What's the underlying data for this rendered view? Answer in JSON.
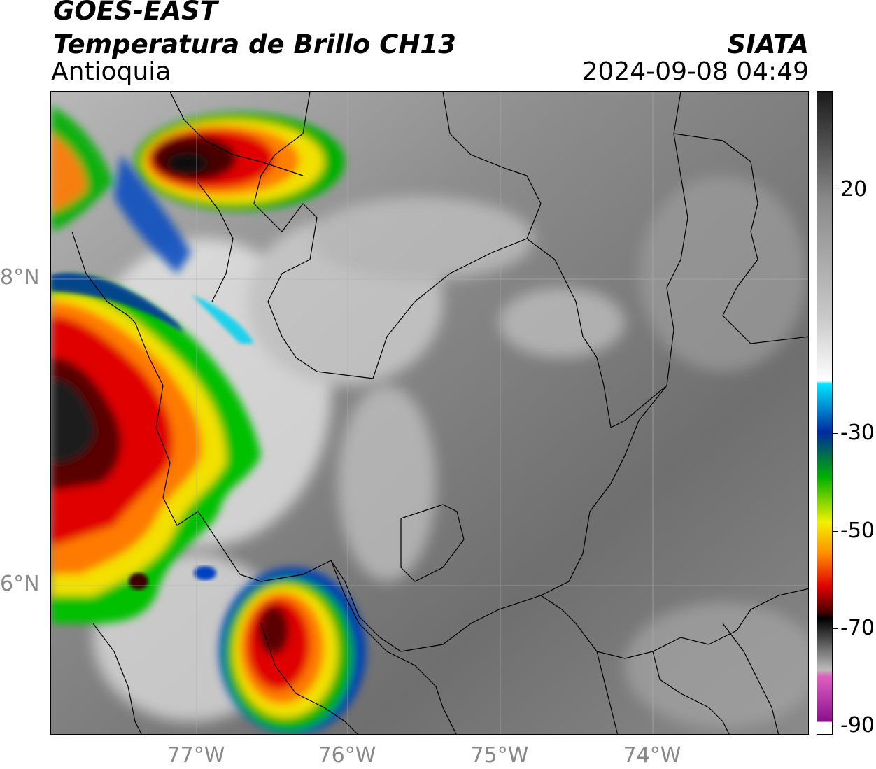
{
  "header": {
    "satellite": "GOES-EAST",
    "product": "Temperatura de Brillo CH13",
    "region": "Antioquia",
    "organization": "SIATA",
    "datetime": "2024-09-08 04:49"
  },
  "map": {
    "lat_labels": [
      "8°N",
      "6°N"
    ],
    "lon_labels": [
      "77°W",
      "76°W",
      "75°W",
      "74°W"
    ]
  },
  "colorbar": {
    "tick_labels": [
      "20",
      "-30",
      "-50",
      "-70",
      "-90"
    ],
    "colors": {
      "gray_warm": "#1a1a1a",
      "white": "#ffffff",
      "cyan": "#00e5ff",
      "blue": "#002a9e",
      "green": "#00b000",
      "yellow": "#f2f200",
      "orange": "#ff8c00",
      "red": "#e00000",
      "dark_red": "#4a0000",
      "black": "#000000",
      "pink": "#e060c0",
      "purple": "#8a1090"
    }
  }
}
